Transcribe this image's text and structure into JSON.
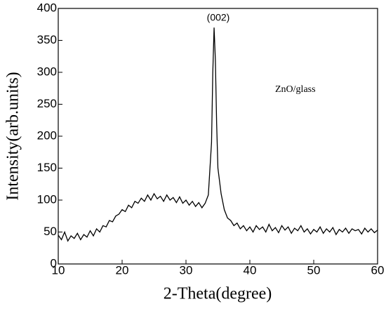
{
  "chart_data": {
    "type": "line",
    "xlabel": "2-Theta(degree)",
    "ylabel": "Intensity(arb.units)",
    "annotations": [
      "(002)",
      "ZnO/glass"
    ],
    "color": "#000000",
    "x": [
      10,
      10.5,
      11,
      11.5,
      12,
      12.5,
      13,
      13.5,
      14,
      14.5,
      15,
      15.5,
      16,
      16.5,
      17,
      17.5,
      18,
      18.5,
      19,
      19.5,
      20,
      20.5,
      21,
      21.5,
      22,
      22.5,
      23,
      23.5,
      24,
      24.5,
      25,
      25.5,
      26,
      26.5,
      27,
      27.5,
      28,
      28.5,
      29,
      29.5,
      30,
      30.5,
      31,
      31.5,
      32,
      32.5,
      33,
      33.5,
      34,
      34.2,
      34.4,
      34.6,
      34.8,
      35,
      35.5,
      36,
      36.5,
      37,
      37.5,
      38,
      38.5,
      39,
      39.5,
      40,
      40.5,
      41,
      41.5,
      42,
      42.5,
      43,
      43.5,
      44,
      44.5,
      45,
      45.5,
      46,
      46.5,
      47,
      47.5,
      48,
      48.5,
      49,
      49.5,
      50,
      50.5,
      51,
      51.5,
      52,
      52.5,
      53,
      53.5,
      54,
      54.5,
      55,
      55.5,
      56,
      56.5,
      57,
      57.5,
      58,
      58.5,
      59,
      59.5,
      60
    ],
    "values": [
      45,
      38,
      50,
      36,
      44,
      40,
      48,
      38,
      46,
      42,
      52,
      44,
      55,
      50,
      60,
      58,
      68,
      66,
      75,
      78,
      85,
      82,
      92,
      88,
      98,
      95,
      103,
      98,
      108,
      100,
      110,
      102,
      106,
      98,
      108,
      100,
      104,
      96,
      105,
      95,
      100,
      92,
      98,
      90,
      96,
      88,
      95,
      108,
      190,
      300,
      370,
      320,
      220,
      150,
      110,
      85,
      72,
      68,
      60,
      64,
      55,
      60,
      52,
      58,
      50,
      60,
      54,
      58,
      50,
      62,
      52,
      57,
      49,
      60,
      53,
      58,
      48,
      56,
      52,
      60,
      50,
      55,
      47,
      54,
      50,
      58,
      48,
      55,
      50,
      57,
      46,
      54,
      50,
      56,
      48,
      55,
      52,
      54,
      47,
      56,
      50,
      55,
      49,
      53
    ],
    "xlim": [
      10,
      60
    ],
    "ylim": [
      0,
      400
    ],
    "xticks": [
      10,
      20,
      30,
      40,
      50,
      60
    ],
    "yticks": [
      0,
      50,
      100,
      150,
      200,
      250,
      300,
      350,
      400
    ]
  }
}
